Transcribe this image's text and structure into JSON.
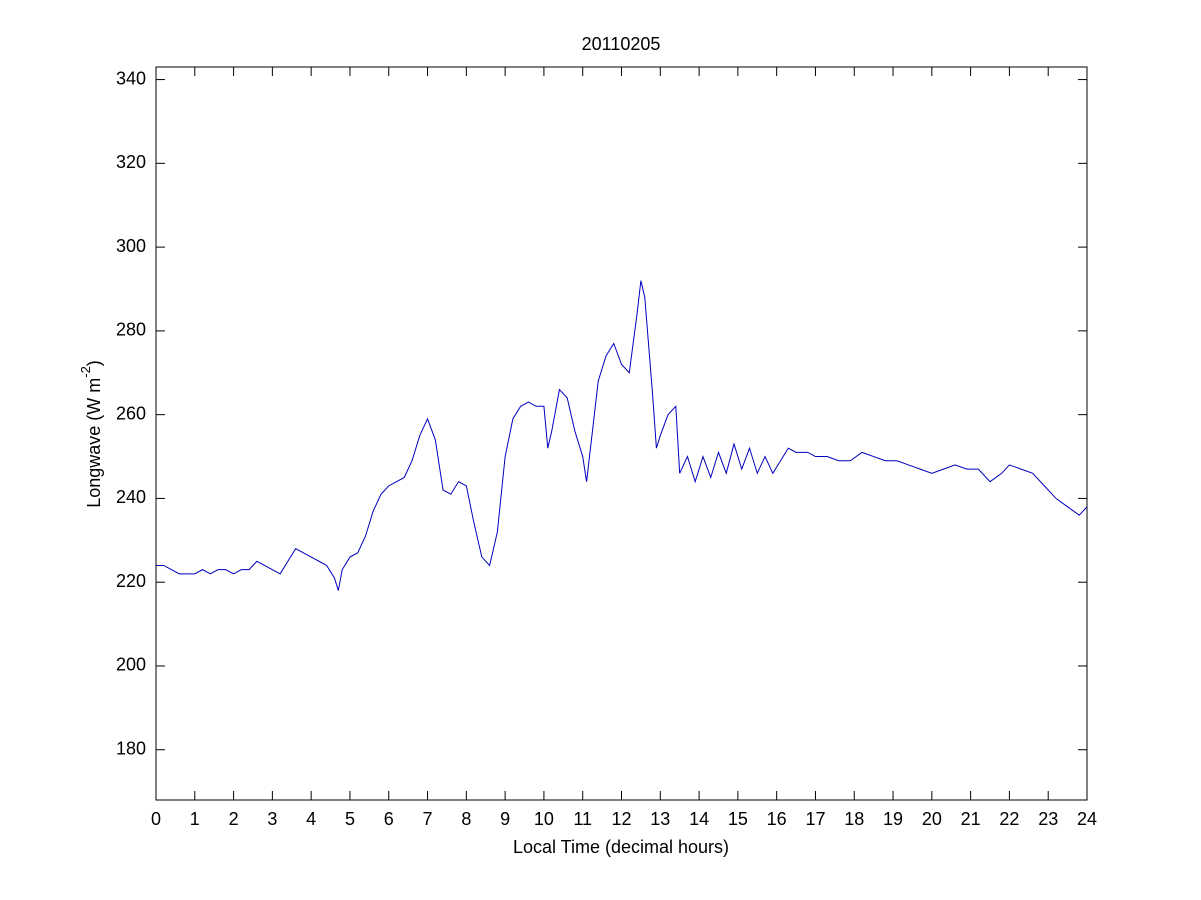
{
  "chart_data": {
    "type": "line",
    "title": "20110205",
    "xlabel": "Local Time (decimal hours)",
    "ylabel": [
      "Longwave (W m",
      "-2",
      ")"
    ],
    "xlim": [
      0,
      24
    ],
    "xticks": [
      0,
      1,
      2,
      3,
      4,
      5,
      6,
      7,
      8,
      9,
      10,
      11,
      12,
      13,
      14,
      15,
      16,
      17,
      18,
      19,
      20,
      21,
      22,
      23,
      24
    ],
    "ylim": [
      168,
      343
    ],
    "yticks": [
      180,
      200,
      220,
      240,
      260,
      280,
      300,
      320,
      340
    ],
    "grid": false,
    "x": [
      0,
      0.2,
      0.4,
      0.6,
      0.8,
      1.0,
      1.2,
      1.4,
      1.6,
      1.8,
      2.0,
      2.2,
      2.4,
      2.6,
      2.8,
      3.0,
      3.2,
      3.4,
      3.6,
      3.8,
      4.0,
      4.2,
      4.4,
      4.6,
      4.7,
      4.8,
      5.0,
      5.2,
      5.4,
      5.6,
      5.8,
      6.0,
      6.2,
      6.4,
      6.6,
      6.8,
      7.0,
      7.2,
      7.4,
      7.6,
      7.8,
      8.0,
      8.2,
      8.4,
      8.6,
      8.8,
      9.0,
      9.2,
      9.4,
      9.6,
      9.8,
      10.0,
      10.1,
      10.2,
      10.4,
      10.6,
      10.8,
      11.0,
      11.1,
      11.2,
      11.4,
      11.6,
      11.8,
      12.0,
      12.2,
      12.4,
      12.5,
      12.6,
      12.8,
      12.9,
      13.0,
      13.2,
      13.4,
      13.5,
      13.7,
      13.9,
      14.1,
      14.3,
      14.5,
      14.7,
      14.9,
      15.1,
      15.3,
      15.5,
      15.7,
      15.9,
      16.1,
      16.3,
      16.5,
      16.8,
      17.0,
      17.3,
      17.6,
      17.9,
      18.2,
      18.5,
      18.8,
      19.1,
      19.4,
      19.7,
      20.0,
      20.3,
      20.6,
      20.9,
      21.2,
      21.5,
      21.8,
      22.0,
      22.3,
      22.6,
      22.9,
      23.2,
      23.5,
      23.8,
      24.0
    ],
    "series": [
      {
        "color": "#0000bf",
        "values": [
          224,
          224,
          223,
          222,
          222,
          222,
          223,
          222,
          223,
          223,
          222,
          223,
          223,
          225,
          224,
          223,
          222,
          225,
          228,
          227,
          226,
          225,
          224,
          221,
          218,
          223,
          226,
          227,
          231,
          237,
          241,
          243,
          244,
          245,
          249,
          255,
          259,
          254,
          242,
          241,
          244,
          243,
          234,
          226,
          224,
          232,
          250,
          259,
          262,
          263,
          262,
          262,
          252,
          256,
          266,
          264,
          256,
          250,
          244,
          252,
          268,
          274,
          277,
          272,
          270,
          284,
          292,
          288,
          265,
          252,
          255,
          260,
          262,
          246,
          250,
          244,
          250,
          245,
          251,
          246,
          253,
          247,
          252,
          246,
          250,
          246,
          249,
          252,
          251,
          251,
          250,
          250,
          249,
          249,
          251,
          250,
          249,
          249,
          248,
          247,
          246,
          247,
          248,
          247,
          247,
          244,
          246,
          248,
          247,
          246,
          243,
          240,
          238,
          236,
          238
        ]
      }
    ]
  }
}
